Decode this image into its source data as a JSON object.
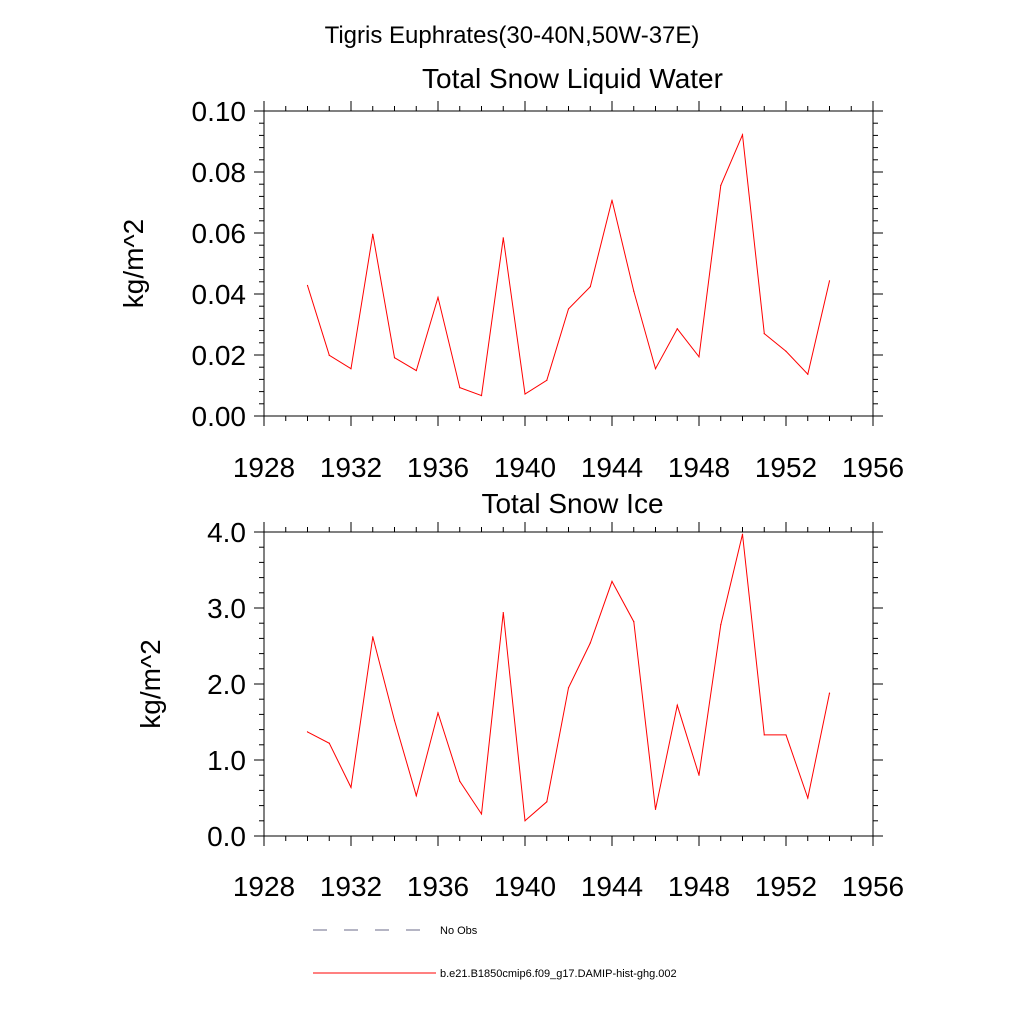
{
  "main_title": "Tigris Euphrates(30-40N,50W-37E)",
  "colors": {
    "series": "#ff0000",
    "no_obs": "#6b6b8a",
    "axis": "#000000"
  },
  "chart_data": [
    {
      "type": "line",
      "title": "Total Snow Liquid Water",
      "ylabel": "kg/m^2",
      "xlabel": "",
      "xlim": [
        1928,
        1956
      ],
      "ylim": [
        0.0,
        0.1
      ],
      "xticks": [
        1928,
        1932,
        1936,
        1940,
        1944,
        1948,
        1952,
        1956
      ],
      "xtick_labels": [
        "1928",
        "1932",
        "1936",
        "1940",
        "1944",
        "1948",
        "1952",
        "1956"
      ],
      "yticks": [
        0.0,
        0.02,
        0.04,
        0.06,
        0.08,
        0.1
      ],
      "ytick_labels": [
        "0.00",
        "0.02",
        "0.04",
        "0.06",
        "0.08",
        "0.10"
      ],
      "grid": false,
      "x": [
        1930,
        1931,
        1932,
        1933,
        1934,
        1935,
        1936,
        1937,
        1938,
        1939,
        1940,
        1941,
        1942,
        1943,
        1944,
        1945,
        1946,
        1947,
        1948,
        1949,
        1950,
        1951,
        1952,
        1953,
        1954
      ],
      "series": [
        {
          "name": "b.e21.B1850cmip6.f09_g17.DAMIP-hist-ghg.002",
          "color": "#ff0000",
          "values": [
            0.0428,
            0.0199,
            0.0155,
            0.0596,
            0.0191,
            0.0149,
            0.0389,
            0.0093,
            0.0067,
            0.0584,
            0.0072,
            0.0117,
            0.0351,
            0.0424,
            0.0708,
            0.0409,
            0.0155,
            0.0286,
            0.0194,
            0.0756,
            0.0922,
            0.027,
            0.0212,
            0.0137,
            0.0443
          ]
        }
      ]
    },
    {
      "type": "line",
      "title": "Total Snow Ice",
      "ylabel": "kg/m^2",
      "xlabel": "",
      "xlim": [
        1928,
        1956
      ],
      "ylim": [
        0.0,
        4.0
      ],
      "xticks": [
        1928,
        1932,
        1936,
        1940,
        1944,
        1948,
        1952,
        1956
      ],
      "xtick_labels": [
        "1928",
        "1932",
        "1936",
        "1940",
        "1944",
        "1948",
        "1952",
        "1956"
      ],
      "yticks": [
        0.0,
        1.0,
        2.0,
        3.0,
        4.0
      ],
      "ytick_labels": [
        "0.0",
        "1.0",
        "2.0",
        "3.0",
        "4.0"
      ],
      "grid": false,
      "x": [
        1930,
        1931,
        1932,
        1933,
        1934,
        1935,
        1936,
        1937,
        1938,
        1939,
        1940,
        1941,
        1942,
        1943,
        1944,
        1945,
        1946,
        1947,
        1948,
        1949,
        1950,
        1951,
        1952,
        1953,
        1954
      ],
      "series": [
        {
          "name": "b.e21.B1850cmip6.f09_g17.DAMIP-hist-ghg.002",
          "color": "#ff0000",
          "values": [
            1.37,
            1.22,
            0.64,
            2.62,
            1.52,
            0.53,
            1.62,
            0.72,
            0.29,
            2.94,
            0.2,
            0.45,
            1.95,
            2.54,
            3.35,
            2.82,
            0.35,
            1.72,
            0.8,
            2.78,
            3.97,
            1.33,
            1.33,
            0.5,
            1.88
          ]
        }
      ]
    }
  ],
  "legend": {
    "placement": "bottom",
    "entries": [
      {
        "label": "No Obs",
        "style": "dashed"
      },
      {
        "label": "b.e21.B1850cmip6.f09_g17.DAMIP-hist-ghg.002",
        "style": "solid"
      }
    ]
  }
}
